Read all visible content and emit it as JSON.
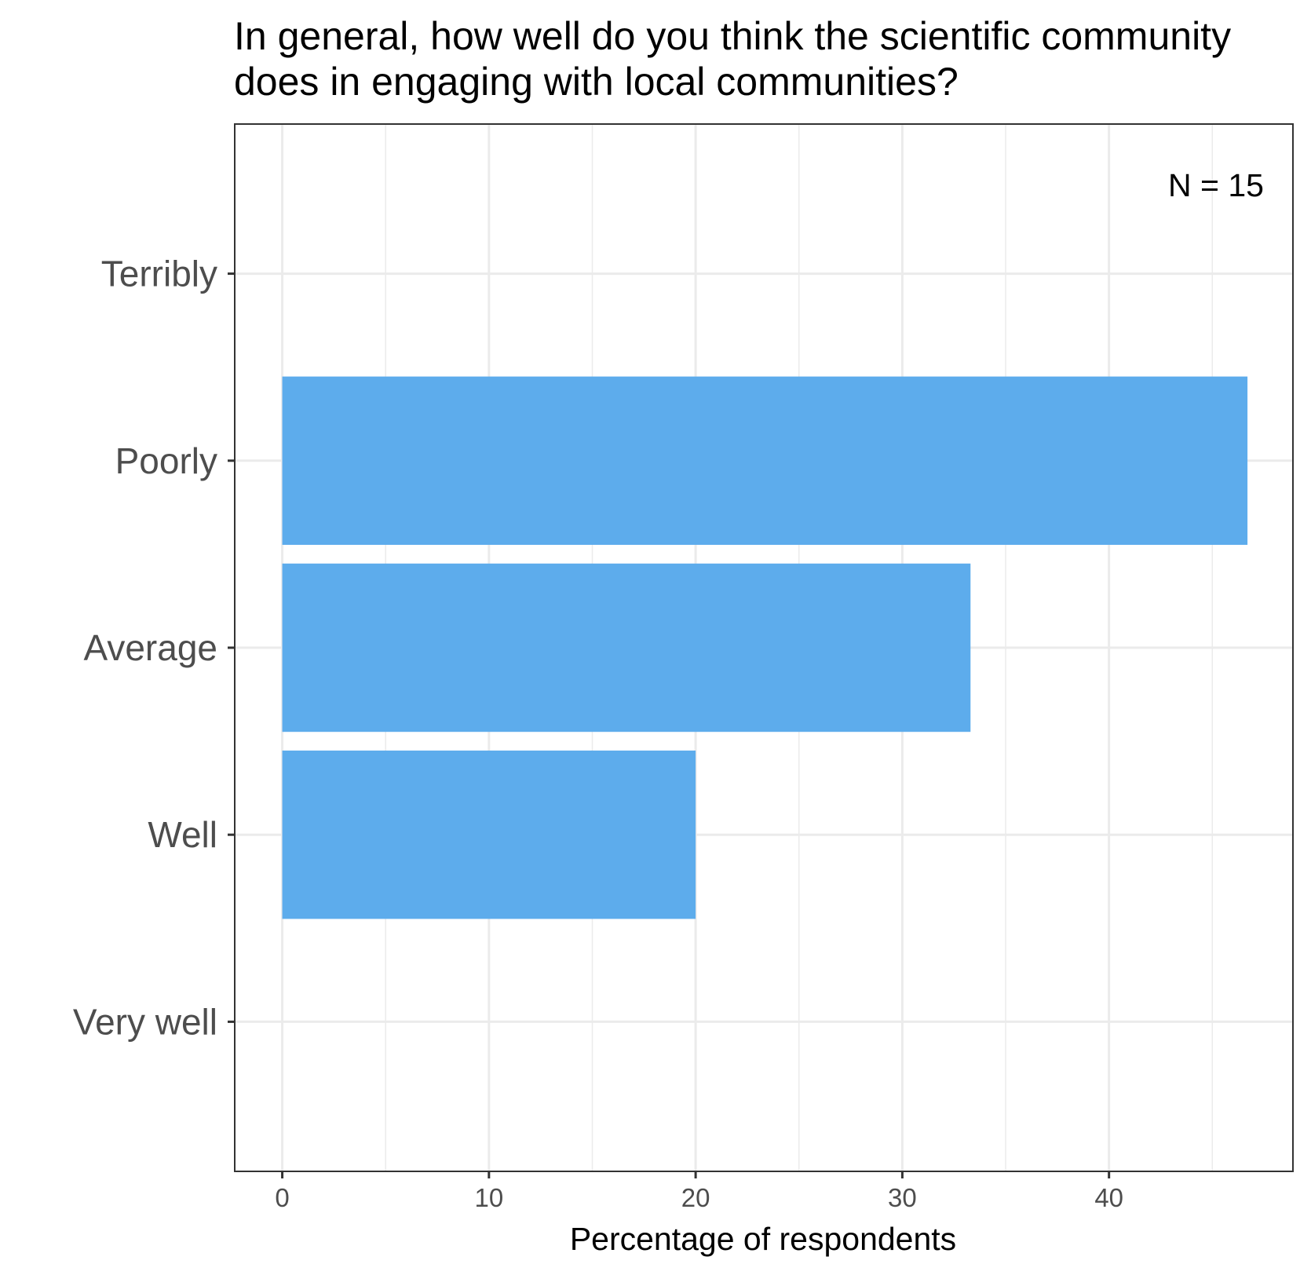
{
  "chart_data": {
    "type": "bar",
    "orientation": "horizontal",
    "title_lines": [
      "In general, how well do you think the scientific community",
      "does in engaging with local communities?"
    ],
    "categories": [
      "Terribly",
      "Poorly",
      "Average",
      "Well",
      "Very well"
    ],
    "values": [
      0,
      46.7,
      33.3,
      20,
      0
    ],
    "xlabel": "Percentage of respondents",
    "ylabel": "",
    "xlim": [
      -2.3,
      48.9
    ],
    "x_ticks": [
      0,
      10,
      20,
      30,
      40
    ],
    "annotation": "N = 15",
    "grid": true,
    "legend": "none",
    "colors": {
      "bar": "#5DACEC",
      "grid": "#EBEBEB",
      "panel_border": "#333333",
      "axis_text": "#4D4D4D",
      "title_text": "#000000"
    }
  }
}
